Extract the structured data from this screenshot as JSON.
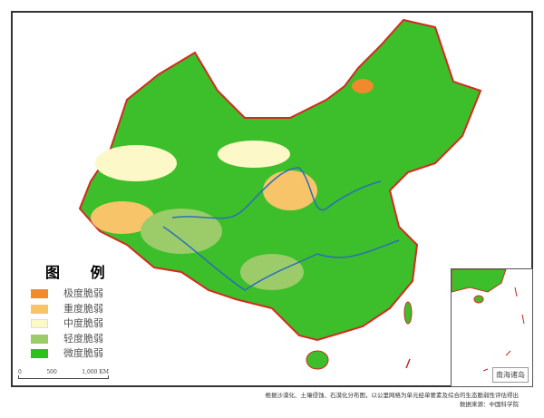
{
  "legend": {
    "title": "图 例",
    "items": [
      {
        "label": "极度脆弱",
        "color": "#f08a2c"
      },
      {
        "label": "重度脆弱",
        "color": "#f7c46a"
      },
      {
        "label": "中度脆弱",
        "color": "#fdf8c8"
      },
      {
        "label": "轻度脆弱",
        "color": "#9ccc6a"
      },
      {
        "label": "微度脆弱",
        "color": "#2fbf1f"
      }
    ]
  },
  "scale": {
    "ticks": [
      "0",
      "500",
      "1,000 KM"
    ]
  },
  "inset": {
    "label": "南海诸岛"
  },
  "note": {
    "line1": "根据沙漠化、土壤侵蚀、石漠化分布图，以公里网格为单元经单要素及综合的生态脆弱性评估得出",
    "line2": "数据来源：中国科学院"
  }
}
